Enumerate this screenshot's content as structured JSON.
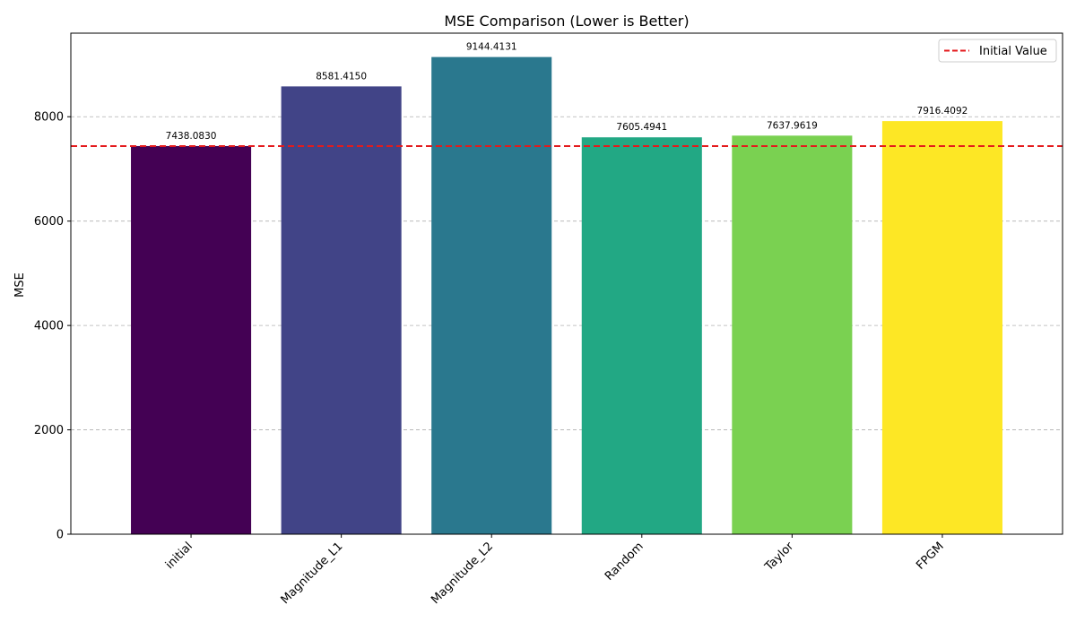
{
  "chart_data": {
    "type": "bar",
    "title": "MSE Comparison (Lower is Better)",
    "xlabel": "",
    "ylabel": "MSE",
    "categories": [
      "initial",
      "Magnitude_L1",
      "Magnitude_L2",
      "Random",
      "Taylor",
      "FPGM"
    ],
    "values": [
      7438.083,
      8581.415,
      9144.4131,
      7605.4941,
      7637.9619,
      7916.4092
    ],
    "value_labels": [
      "7438.0830",
      "8581.4150",
      "9144.4131",
      "7605.4941",
      "7637.9619",
      "7916.4092"
    ],
    "bar_colors": [
      "#440154",
      "#414487",
      "#2a788e",
      "#22a884",
      "#7ad151",
      "#fde725"
    ],
    "ylim": [
      0,
      9601.6
    ],
    "yticks": [
      0,
      2000,
      4000,
      6000,
      8000
    ],
    "grid": {
      "axis": "y",
      "style": "dashed",
      "color": "#b0b0b0"
    },
    "reference_line": {
      "value": 7438.083,
      "label": "Initial Value",
      "color": "#e41a1c",
      "style": "dashed"
    },
    "legend": {
      "position": "top-right",
      "entries": [
        "Initial Value"
      ]
    }
  }
}
